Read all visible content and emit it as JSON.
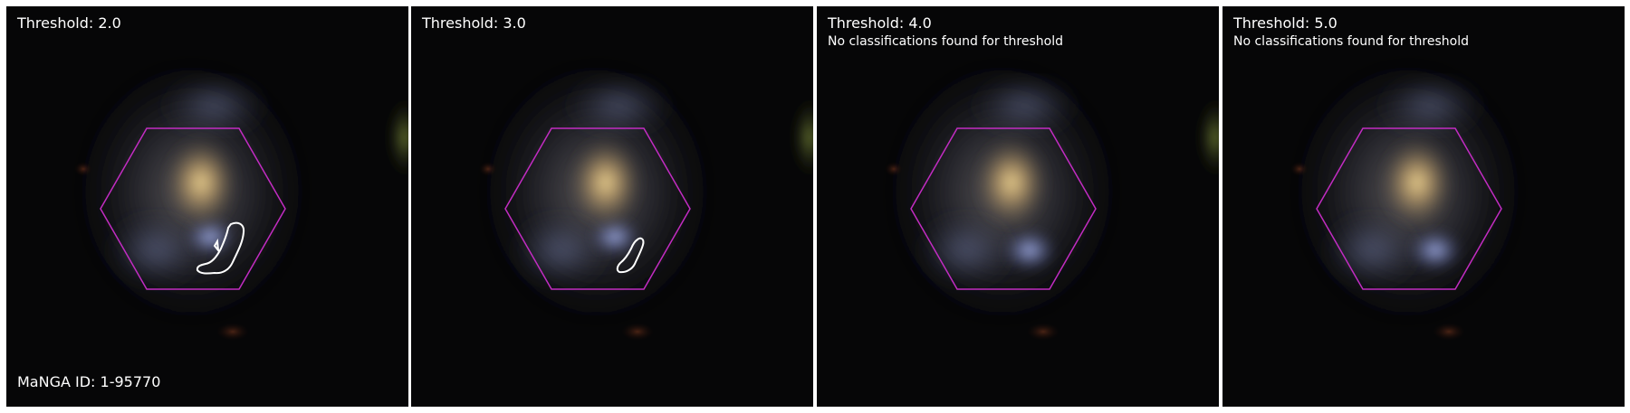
{
  "panels": [
    {
      "title": "Threshold: 2.0",
      "note": ""
    },
    {
      "title": "Threshold: 3.0",
      "note": ""
    },
    {
      "title": "Threshold: 4.0",
      "note": "No classifications found for threshold"
    },
    {
      "title": "Threshold: 5.0",
      "note": "No classifications found for threshold"
    }
  ],
  "footer": {
    "manga_id": "MaNGA ID: 1-95770"
  },
  "colors": {
    "hexagon": "#c22cc2",
    "contour": "#ffffff",
    "background": "#000000"
  }
}
